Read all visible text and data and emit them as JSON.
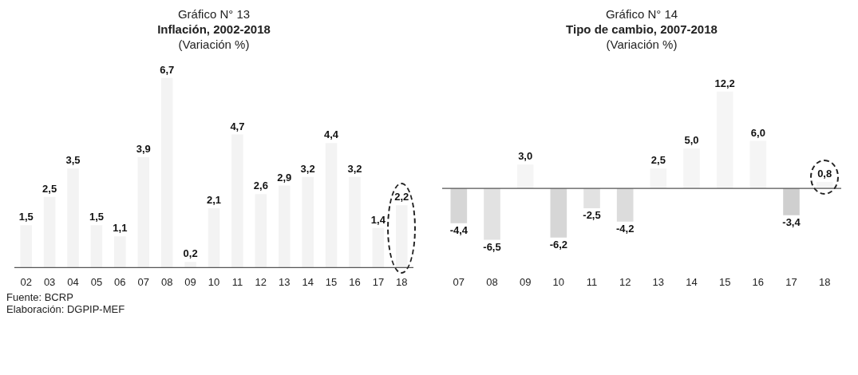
{
  "chart_data": [
    {
      "type": "bar",
      "title": "Gráfico N° 13",
      "subtitle": "Inflación, 2002-2018",
      "ylabel": "(Variación %)",
      "categories": [
        "02",
        "03",
        "04",
        "05",
        "06",
        "07",
        "08",
        "09",
        "10",
        "11",
        "12",
        "13",
        "14",
        "15",
        "16",
        "17",
        "18"
      ],
      "values": [
        1.5,
        2.5,
        3.5,
        1.5,
        1.1,
        3.9,
        6.7,
        0.2,
        2.1,
        4.7,
        2.6,
        2.9,
        3.2,
        4.4,
        3.2,
        1.4,
        2.2
      ],
      "value_labels": [
        "1,5",
        "2,5",
        "3,5",
        "1,5",
        "1,1",
        "3,9",
        "6,7",
        "0,2",
        "2,1",
        "4,7",
        "2,6",
        "2,9",
        "3,2",
        "4,4",
        "3,2",
        "1,4",
        "2,2"
      ],
      "color": "#f3f3f3",
      "annotations": [
        "Fuente: BCRP",
        "Elaboración: DGPIP-MEF"
      ]
    },
    {
      "type": "bar",
      "title": "Gráfico N° 14",
      "subtitle": "Tipo de cambio, 2007-2018",
      "ylabel": "(Variación %)",
      "categories": [
        "07",
        "08",
        "09",
        "10",
        "11",
        "12",
        "13",
        "14",
        "15",
        "16",
        "17",
        "18"
      ],
      "values": [
        -4.4,
        -6.5,
        3.0,
        -6.2,
        -2.5,
        -4.2,
        2.5,
        5.0,
        12.2,
        6.0,
        -3.4,
        0.8
      ],
      "value_labels": [
        "-4,4",
        "-6,5",
        "3,0",
        "-6,2",
        "-2,5",
        "-4,2",
        "2,5",
        "5,0",
        "12,2",
        "6,0",
        "-3,4",
        "0,8"
      ],
      "colors": [
        "#d6d6d6",
        "#e2e2e2",
        "#f5f5f5",
        "#d6d6d6",
        "#e2e2e2",
        "#dcdcdc",
        "#f5f5f5",
        "#f5f5f5",
        "#f5f5f5",
        "#f5f5f5",
        "#cfcfcf",
        "#f5f5f5"
      ]
    }
  ]
}
